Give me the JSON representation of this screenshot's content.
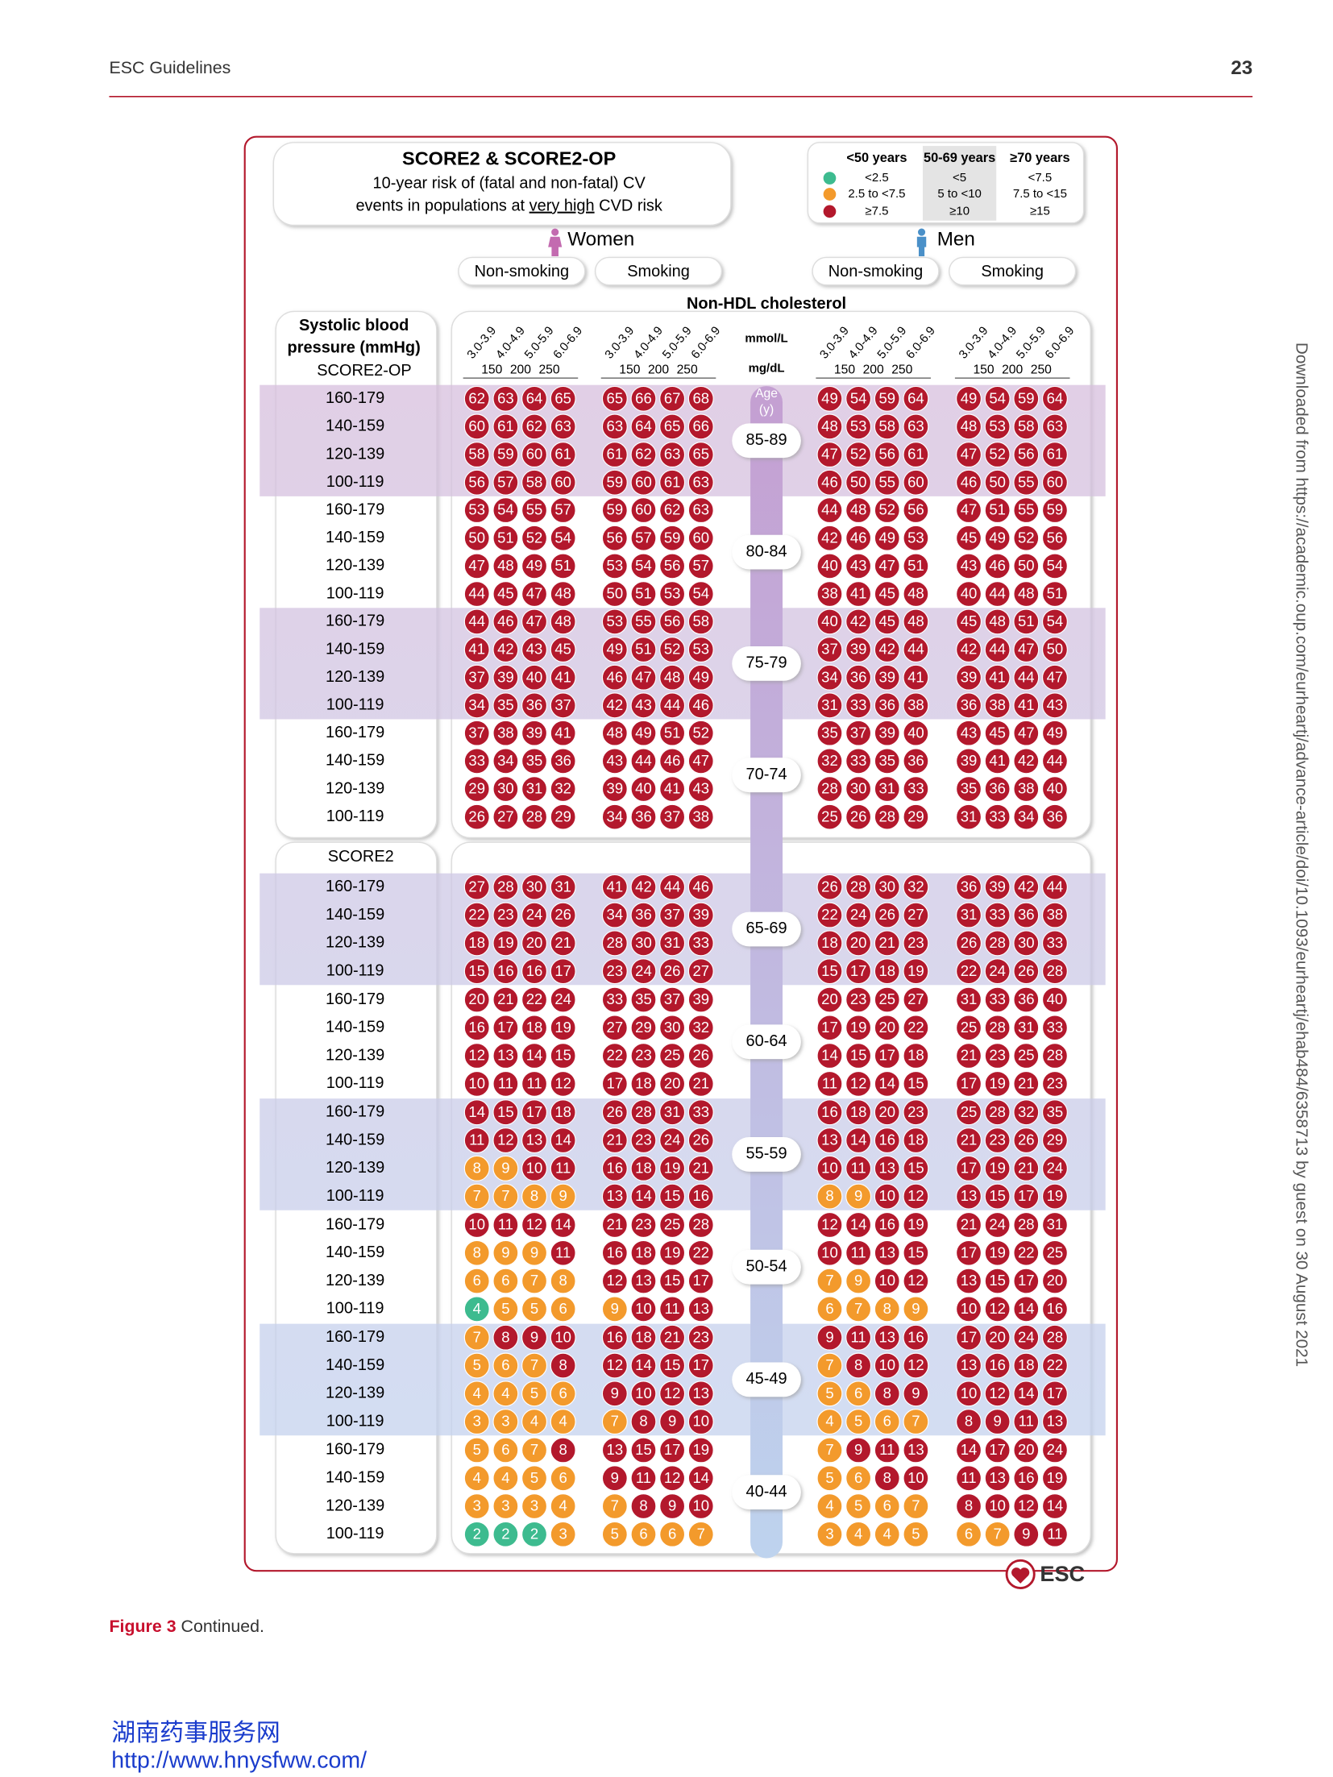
{
  "header": {
    "left": "ESC Guidelines",
    "page": "23"
  },
  "title": {
    "main": "SCORE2 & SCORE2-OP",
    "line1": "10-year risk of (fatal and non-fatal) CV",
    "line2": [
      "events in populations at ",
      "very high",
      " CVD risk"
    ]
  },
  "legend": {
    "colors": [
      "#3dbb8f",
      "#f39a2c",
      "#b3182c"
    ],
    "columns": [
      {
        "header": "<50 years",
        "labels": [
          "<2.5",
          "2.5 to <7.5",
          "≥7.5"
        ],
        "cutoffs": [
          2.5,
          7.5
        ]
      },
      {
        "header": "50-69 years",
        "labels": [
          "<5",
          "5 to <10",
          "≥10"
        ],
        "cutoffs": [
          5,
          10
        ]
      },
      {
        "header": "≥70 years",
        "labels": [
          "<7.5",
          "7.5 to <15",
          "≥15"
        ],
        "cutoffs": [
          7.5,
          15
        ]
      }
    ]
  },
  "sexes": [
    "Women",
    "Men"
  ],
  "smoking": [
    "Non-smoking",
    "Smoking"
  ],
  "cholesterol_title": "Non-HDL cholesterol",
  "mmol_labels": [
    "3.0-3.9",
    "4.0-4.9",
    "5.0-5.9",
    "6.0-6.9"
  ],
  "mg_labels": [
    150,
    200,
    250
  ],
  "mmol_unit": "mmol/L",
  "mg_unit": "mg/dL",
  "age_header": [
    "Age",
    "(y)"
  ],
  "sbp_header": [
    "Systolic blood",
    "pressure (mmHg)"
  ],
  "sections": [
    {
      "name": "SCORE2-OP",
      "bands": [
        {
          "age": "85-89",
          "risk": 2,
          "rows": [
            {
              "sbp": "160-179",
              "values": [
                62,
                63,
                64,
                65,
                65,
                66,
                67,
                68,
                49,
                54,
                59,
                64,
                49,
                54,
                59,
                64
              ]
            },
            {
              "sbp": "140-159",
              "values": [
                60,
                61,
                62,
                63,
                63,
                64,
                65,
                66,
                48,
                53,
                58,
                63,
                48,
                53,
                58,
                63
              ]
            },
            {
              "sbp": "120-139",
              "values": [
                58,
                59,
                60,
                61,
                61,
                62,
                63,
                65,
                47,
                52,
                56,
                61,
                47,
                52,
                56,
                61
              ]
            },
            {
              "sbp": "100-119",
              "values": [
                56,
                57,
                58,
                60,
                59,
                60,
                61,
                63,
                46,
                50,
                55,
                60,
                46,
                50,
                55,
                60
              ]
            }
          ]
        },
        {
          "age": "80-84",
          "risk": 2,
          "rows": [
            {
              "sbp": "160-179",
              "values": [
                53,
                54,
                55,
                57,
                59,
                60,
                62,
                63,
                44,
                48,
                52,
                56,
                47,
                51,
                55,
                59
              ]
            },
            {
              "sbp": "140-159",
              "values": [
                50,
                51,
                52,
                54,
                56,
                57,
                59,
                60,
                42,
                46,
                49,
                53,
                45,
                49,
                52,
                56
              ]
            },
            {
              "sbp": "120-139",
              "values": [
                47,
                48,
                49,
                51,
                53,
                54,
                56,
                57,
                40,
                43,
                47,
                51,
                43,
                46,
                50,
                54
              ]
            },
            {
              "sbp": "100-119",
              "values": [
                44,
                45,
                47,
                48,
                50,
                51,
                53,
                54,
                38,
                41,
                45,
                48,
                40,
                44,
                48,
                51
              ]
            }
          ]
        },
        {
          "age": "75-79",
          "risk": 2,
          "rows": [
            {
              "sbp": "160-179",
              "values": [
                44,
                46,
                47,
                48,
                53,
                55,
                56,
                58,
                40,
                42,
                45,
                48,
                45,
                48,
                51,
                54
              ]
            },
            {
              "sbp": "140-159",
              "values": [
                41,
                42,
                43,
                45,
                49,
                51,
                52,
                53,
                37,
                39,
                42,
                44,
                42,
                44,
                47,
                50
              ]
            },
            {
              "sbp": "120-139",
              "values": [
                37,
                39,
                40,
                41,
                46,
                47,
                48,
                49,
                34,
                36,
                39,
                41,
                39,
                41,
                44,
                47
              ]
            },
            {
              "sbp": "100-119",
              "values": [
                34,
                35,
                36,
                37,
                42,
                43,
                44,
                46,
                31,
                33,
                36,
                38,
                36,
                38,
                41,
                43
              ]
            }
          ]
        },
        {
          "age": "70-74",
          "risk": 2,
          "rows": [
            {
              "sbp": "160-179",
              "values": [
                37,
                38,
                39,
                41,
                48,
                49,
                51,
                52,
                35,
                37,
                39,
                40,
                43,
                45,
                47,
                49
              ]
            },
            {
              "sbp": "140-159",
              "values": [
                33,
                34,
                35,
                36,
                43,
                44,
                46,
                47,
                32,
                33,
                35,
                36,
                39,
                41,
                42,
                44
              ]
            },
            {
              "sbp": "120-139",
              "values": [
                29,
                30,
                31,
                32,
                39,
                40,
                41,
                43,
                28,
                30,
                31,
                33,
                35,
                36,
                38,
                40
              ]
            },
            {
              "sbp": "100-119",
              "values": [
                26,
                27,
                28,
                29,
                34,
                36,
                37,
                38,
                25,
                26,
                28,
                29,
                31,
                33,
                34,
                36
              ]
            }
          ]
        }
      ]
    },
    {
      "name": "SCORE2",
      "bands": [
        {
          "age": "65-69",
          "risk": 1,
          "rows": [
            {
              "sbp": "160-179",
              "values": [
                27,
                28,
                30,
                31,
                41,
                42,
                44,
                46,
                26,
                28,
                30,
                32,
                36,
                39,
                42,
                44
              ]
            },
            {
              "sbp": "140-159",
              "values": [
                22,
                23,
                24,
                26,
                34,
                36,
                37,
                39,
                22,
                24,
                26,
                27,
                31,
                33,
                36,
                38
              ]
            },
            {
              "sbp": "120-139",
              "values": [
                18,
                19,
                20,
                21,
                28,
                30,
                31,
                33,
                18,
                20,
                21,
                23,
                26,
                28,
                30,
                33
              ]
            },
            {
              "sbp": "100-119",
              "values": [
                15,
                16,
                16,
                17,
                23,
                24,
                26,
                27,
                15,
                17,
                18,
                19,
                22,
                24,
                26,
                28
              ]
            }
          ]
        },
        {
          "age": "60-64",
          "risk": 1,
          "rows": [
            {
              "sbp": "160-179",
              "values": [
                20,
                21,
                22,
                24,
                33,
                35,
                37,
                39,
                20,
                23,
                25,
                27,
                31,
                33,
                36,
                40
              ]
            },
            {
              "sbp": "140-159",
              "values": [
                16,
                17,
                18,
                19,
                27,
                29,
                30,
                32,
                17,
                19,
                20,
                22,
                25,
                28,
                31,
                33
              ]
            },
            {
              "sbp": "120-139",
              "values": [
                12,
                13,
                14,
                15,
                22,
                23,
                25,
                26,
                14,
                15,
                17,
                18,
                21,
                23,
                25,
                28
              ]
            },
            {
              "sbp": "100-119",
              "values": [
                10,
                11,
                11,
                12,
                17,
                18,
                20,
                21,
                11,
                12,
                14,
                15,
                17,
                19,
                21,
                23
              ]
            }
          ]
        },
        {
          "age": "55-59",
          "risk": 1,
          "rows": [
            {
              "sbp": "160-179",
              "values": [
                14,
                15,
                17,
                18,
                26,
                28,
                31,
                33,
                16,
                18,
                20,
                23,
                25,
                28,
                32,
                35
              ]
            },
            {
              "sbp": "140-159",
              "values": [
                11,
                12,
                13,
                14,
                21,
                23,
                24,
                26,
                13,
                14,
                16,
                18,
                21,
                23,
                26,
                29
              ]
            },
            {
              "sbp": "120-139",
              "values": [
                8,
                9,
                10,
                11,
                16,
                18,
                19,
                21,
                10,
                11,
                13,
                15,
                17,
                19,
                21,
                24
              ]
            },
            {
              "sbp": "100-119",
              "values": [
                7,
                7,
                8,
                9,
                13,
                14,
                15,
                16,
                8,
                9,
                10,
                12,
                13,
                15,
                17,
                19
              ]
            }
          ]
        },
        {
          "age": "50-54",
          "risk": 1,
          "rows": [
            {
              "sbp": "160-179",
              "values": [
                10,
                11,
                12,
                14,
                21,
                23,
                25,
                28,
                12,
                14,
                16,
                19,
                21,
                24,
                28,
                31
              ]
            },
            {
              "sbp": "140-159",
              "values": [
                8,
                9,
                9,
                11,
                16,
                18,
                19,
                22,
                10,
                11,
                13,
                15,
                17,
                19,
                22,
                25
              ]
            },
            {
              "sbp": "120-139",
              "values": [
                6,
                6,
                7,
                8,
                12,
                13,
                15,
                17,
                7,
                9,
                10,
                12,
                13,
                15,
                17,
                20
              ]
            },
            {
              "sbp": "100-119",
              "values": [
                4,
                5,
                5,
                6,
                9,
                10,
                11,
                13,
                6,
                7,
                8,
                9,
                10,
                12,
                14,
                16
              ]
            }
          ]
        },
        {
          "age": "45-49",
          "risk": 0,
          "rows": [
            {
              "sbp": "160-179",
              "values": [
                7,
                8,
                9,
                10,
                16,
                18,
                21,
                23,
                9,
                11,
                13,
                16,
                17,
                20,
                24,
                28
              ]
            },
            {
              "sbp": "140-159",
              "values": [
                5,
                6,
                7,
                8,
                12,
                14,
                15,
                17,
                7,
                8,
                10,
                12,
                13,
                16,
                18,
                22
              ]
            },
            {
              "sbp": "120-139",
              "values": [
                4,
                4,
                5,
                6,
                9,
                10,
                12,
                13,
                5,
                6,
                8,
                9,
                10,
                12,
                14,
                17
              ]
            },
            {
              "sbp": "100-119",
              "values": [
                3,
                3,
                4,
                4,
                7,
                8,
                9,
                10,
                4,
                5,
                6,
                7,
                8,
                9,
                11,
                13
              ]
            }
          ]
        },
        {
          "age": "40-44",
          "risk": 0,
          "rows": [
            {
              "sbp": "160-179",
              "values": [
                5,
                6,
                7,
                8,
                13,
                15,
                17,
                19,
                7,
                9,
                11,
                13,
                14,
                17,
                20,
                24
              ]
            },
            {
              "sbp": "140-159",
              "values": [
                4,
                4,
                5,
                6,
                9,
                11,
                12,
                14,
                5,
                6,
                8,
                10,
                11,
                13,
                16,
                19
              ]
            },
            {
              "sbp": "120-139",
              "values": [
                3,
                3,
                3,
                4,
                7,
                8,
                9,
                10,
                4,
                5,
                6,
                7,
                8,
                10,
                12,
                14
              ]
            },
            {
              "sbp": "100-119",
              "values": [
                2,
                2,
                2,
                3,
                5,
                6,
                6,
                7,
                3,
                4,
                4,
                5,
                6,
                7,
                9,
                11
              ]
            }
          ]
        }
      ]
    }
  ],
  "logo": "ESC",
  "caption": {
    "label": "Figure 3",
    "text": " Continued."
  },
  "side_note": "Downloaded from https://academic.oup.com/eurheartj/advance-article/doi/10.1093/eurheartj/ehab484/6358713 by guest on 30 August 2021",
  "watermark": [
    "湖南药事服务网",
    "http://www.hnysfww.com/"
  ]
}
